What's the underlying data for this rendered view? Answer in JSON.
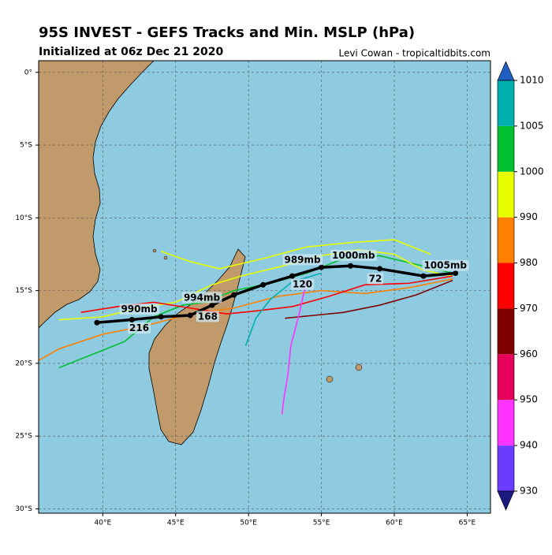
{
  "header": {
    "title": "95S INVEST - GEFS Tracks and Min. MSLP (hPa)",
    "subtitle": "Initialized at 06z Dec 21 2020",
    "credit": "Levi Cowan - tropicaltidbits.com"
  },
  "chart_data": {
    "type": "map",
    "xlim": [
      35.6,
      66.6
    ],
    "ylim": [
      -30.3,
      0.8
    ],
    "xticks": [
      {
        "value": 40,
        "label": "40°E"
      },
      {
        "value": 45,
        "label": "45°E"
      },
      {
        "value": 50,
        "label": "50°E"
      },
      {
        "value": 55,
        "label": "55°E"
      },
      {
        "value": 60,
        "label": "60°E"
      },
      {
        "value": 65,
        "label": "65°E"
      }
    ],
    "yticks": [
      {
        "value": 0,
        "label": "0°"
      },
      {
        "value": -5,
        "label": "5°S"
      },
      {
        "value": -10,
        "label": "10°S"
      },
      {
        "value": -15,
        "label": "15°S"
      },
      {
        "value": -20,
        "label": "20°S"
      },
      {
        "value": -25,
        "label": "25°S"
      },
      {
        "value": -30,
        "label": "30°S"
      }
    ],
    "grid": true,
    "series": [
      {
        "color": "#00c030",
        "x": [
          64.0,
          61.5,
          59.0,
          56.5,
          54.0,
          51.5,
          49.0,
          47.0,
          45.5,
          43.5,
          41.5,
          39.0,
          37.0
        ],
        "y": [
          -13.8,
          -13.2,
          -12.6,
          -12.8,
          -13.8,
          -14.5,
          -15.0,
          -15.8,
          -16.0,
          -16.8,
          -18.5,
          -19.5,
          -20.3
        ]
      },
      {
        "color": "#e8ff00",
        "x": [
          64.0,
          62.0,
          60.0,
          57.5,
          55.0,
          52.0,
          49.5,
          47.5,
          45.0,
          42.5,
          40.0,
          37.0
        ],
        "y": [
          -14.0,
          -13.6,
          -12.5,
          -12.2,
          -12.6,
          -13.4,
          -14.0,
          -14.6,
          -15.8,
          -16.2,
          -16.8,
          -17.0
        ]
      },
      {
        "color": "#ff8000",
        "x": [
          64.0,
          61.0,
          58.0,
          55.0,
          52.0,
          49.0,
          46.0,
          43.0,
          40.0,
          37.0,
          35.6
        ],
        "y": [
          -14.2,
          -14.8,
          -15.2,
          -15.0,
          -15.4,
          -16.2,
          -16.6,
          -17.4,
          -18.0,
          -19.0,
          -19.8
        ]
      },
      {
        "color": "#ff0000",
        "x": [
          64.0,
          61.0,
          58.0,
          55.5,
          53.0,
          50.5,
          48.5,
          46.0,
          43.5,
          41.0,
          38.5
        ],
        "y": [
          -14.0,
          -14.5,
          -14.6,
          -15.4,
          -16.1,
          -16.4,
          -16.6,
          -16.2,
          -15.8,
          -16.1,
          -16.5
        ]
      },
      {
        "color": "#800000",
        "x": [
          64.0,
          61.5,
          59.0,
          56.5,
          54.5,
          52.5
        ],
        "y": [
          -14.3,
          -15.3,
          -16.0,
          -16.5,
          -16.7,
          -16.9
        ]
      },
      {
        "color": "#ff33ff",
        "x": [
          54.0,
          53.5,
          52.9,
          52.7,
          52.4,
          52.3
        ],
        "y": [
          -14.2,
          -16.5,
          -18.8,
          -20.8,
          -22.6,
          -23.5
        ]
      },
      {
        "color": "#00b0b0",
        "x": [
          55.0,
          53.0,
          51.5,
          50.5,
          49.8
        ],
        "y": [
          -13.8,
          -14.4,
          -15.6,
          -16.9,
          -18.8
        ]
      },
      {
        "color": "#e8ff00",
        "x": [
          62.5,
          60.0,
          57.0,
          54.0,
          51.0,
          48.0,
          46.0,
          44.0
        ],
        "y": [
          -12.5,
          -11.5,
          -11.7,
          -12.0,
          -12.8,
          -13.5,
          -13.0,
          -12.3
        ]
      }
    ],
    "mean_track": {
      "color": "#000000",
      "x": [
        64.2,
        62.0,
        59.0,
        57.0,
        55.0,
        53.0,
        51.0,
        49.0,
        47.5,
        46.0,
        44.0,
        42.0,
        39.6
      ],
      "y": [
        -13.8,
        -14.0,
        -13.5,
        -13.3,
        -13.4,
        -14.0,
        -14.6,
        -15.3,
        -16.0,
        -16.7,
        -16.8,
        -17.0,
        -17.2
      ],
      "labels": [
        {
          "text": "1005mb",
          "x": 63.5,
          "y": -13.3
        },
        {
          "text": "72",
          "x": 58.7,
          "y": -14.2
        },
        {
          "text": "1000mb",
          "x": 57.2,
          "y": -12.6
        },
        {
          "text": "989mb",
          "x": 53.7,
          "y": -12.9
        },
        {
          "text": "120",
          "x": 53.7,
          "y": -14.6
        },
        {
          "text": "994mb",
          "x": 46.8,
          "y": -15.5
        },
        {
          "text": "168",
          "x": 47.2,
          "y": -16.8
        },
        {
          "text": "990mb",
          "x": 42.5,
          "y": -16.3
        },
        {
          "text": "216",
          "x": 42.5,
          "y": -17.6
        }
      ]
    },
    "colorbar": {
      "bounds": [
        930,
        940,
        950,
        960,
        970,
        980,
        990,
        1000,
        1005,
        1010
      ],
      "colors": [
        "#6a3cff",
        "#ff33ff",
        "#e6005c",
        "#800000",
        "#ff0000",
        "#ff8000",
        "#e8ff00",
        "#00c030",
        "#00b0b0"
      ],
      "under": "#1a1a80",
      "over": "#1f5fbf"
    }
  }
}
